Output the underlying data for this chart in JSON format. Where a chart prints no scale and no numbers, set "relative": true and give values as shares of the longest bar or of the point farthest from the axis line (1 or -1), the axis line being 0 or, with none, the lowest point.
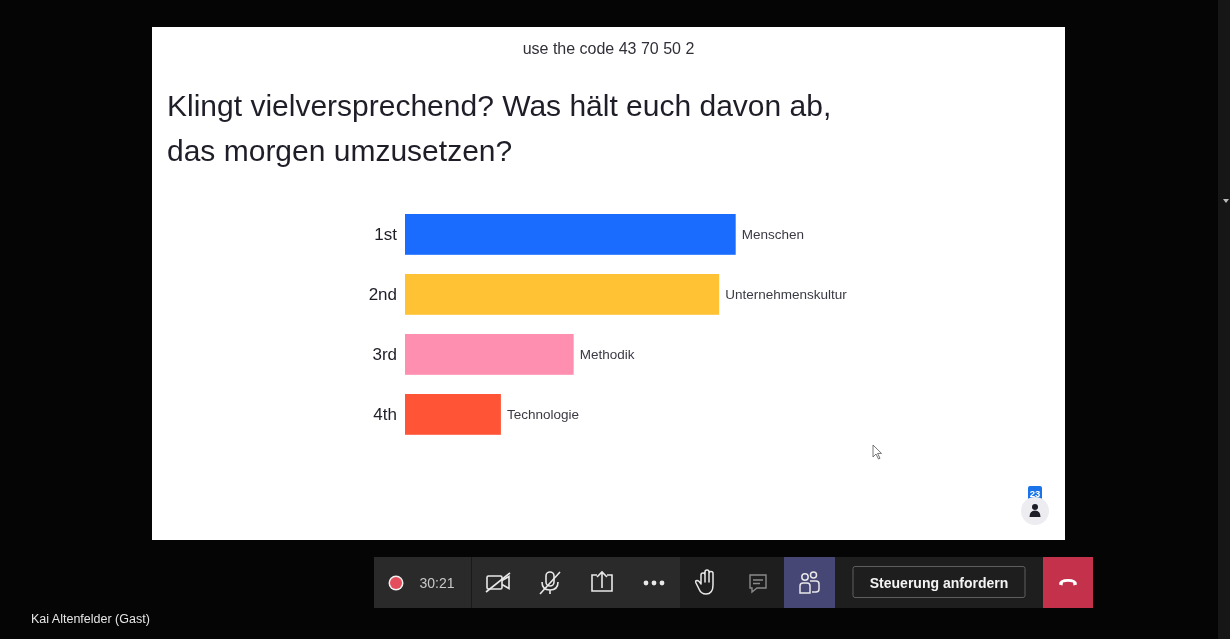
{
  "chart_data": {
    "type": "bar",
    "orientation": "horizontal",
    "relative": true,
    "subtitle": "use the code 43 70 50 2",
    "title": "Klingt vielversprechend? Was hält euch davon ab, das morgen umzusetzen?",
    "categories": [
      "1st",
      "2nd",
      "3rd",
      "4th"
    ],
    "values": [
      1,
      0.95,
      0.51,
      0.29
    ],
    "colors": [
      "#1a6cff",
      "#ffc234",
      "#ff8fb1",
      "#ff5436"
    ],
    "annotations": [
      {
        "text": "Menschen",
        "x": 1,
        "y": "1st"
      },
      {
        "text": "Unternehmenskultur",
        "x": 0.95,
        "y": "2nd"
      },
      {
        "text": "Methodik",
        "x": 0.51,
        "y": "3rd"
      },
      {
        "text": "Technologie",
        "x": 0.29,
        "y": "4th"
      },
      "30:21",
      "Steuerung anfordern",
      "Kai Altenfelder (Gast)",
      "23"
    ]
  }
}
